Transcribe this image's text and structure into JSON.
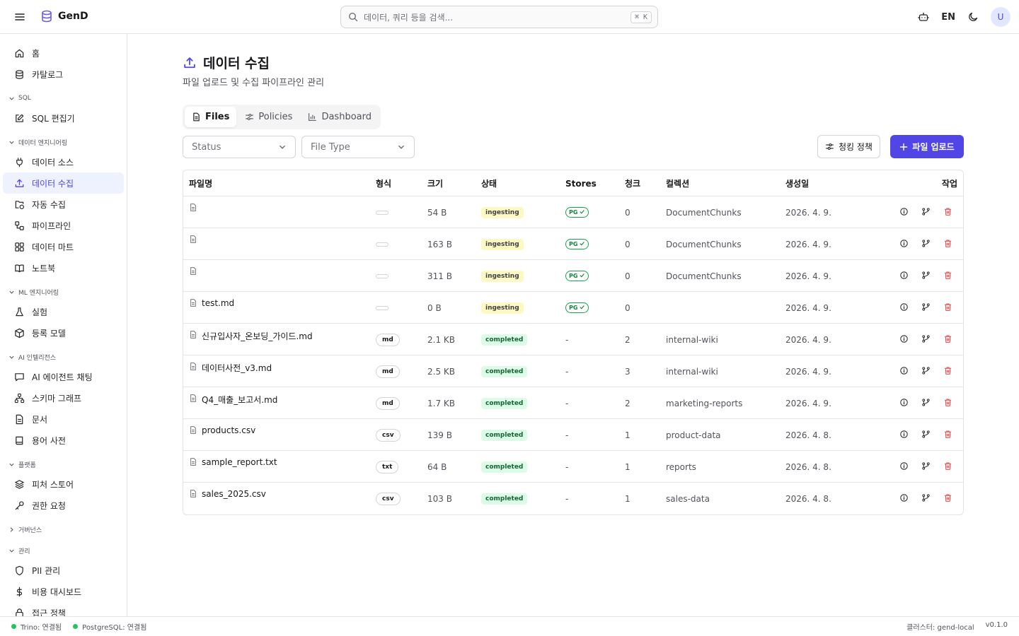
{
  "app": {
    "name": "GenD"
  },
  "header": {
    "search_placeholder": "데이터, 쿼리 등을 검색...",
    "shortcut": "⌘ K",
    "lang": "EN",
    "avatar_initial": "U"
  },
  "sidebar": {
    "top": [
      {
        "label": "홈",
        "icon": "home-icon"
      },
      {
        "label": "카탈로그",
        "icon": "database-icon"
      }
    ],
    "groups": [
      {
        "title": "SQL",
        "expanded": true,
        "items": [
          {
            "label": "SQL 편집기",
            "icon": "edit-icon"
          }
        ]
      },
      {
        "title": "데이터 엔지니어링",
        "expanded": true,
        "items": [
          {
            "label": "데이터 소스",
            "icon": "plug-icon"
          },
          {
            "label": "데이터 수집",
            "icon": "upload-icon",
            "active": true
          },
          {
            "label": "자동 수집",
            "icon": "folder-sync-icon"
          },
          {
            "label": "파이프라인",
            "icon": "workflow-icon"
          },
          {
            "label": "데이터 마트",
            "icon": "grid-icon"
          },
          {
            "label": "노트북",
            "icon": "book-icon"
          }
        ]
      },
      {
        "title": "ML 엔지니어링",
        "expanded": true,
        "items": [
          {
            "label": "실험",
            "icon": "flask-icon"
          },
          {
            "label": "등록 모델",
            "icon": "box-icon"
          }
        ]
      },
      {
        "title": "AI 인텔리전스",
        "expanded": true,
        "items": [
          {
            "label": "AI 에이전트 채팅",
            "icon": "chat-icon"
          },
          {
            "label": "스키마 그래프",
            "icon": "network-icon"
          },
          {
            "label": "문서",
            "icon": "document-icon"
          },
          {
            "label": "용어 사전",
            "icon": "book-open-icon"
          }
        ]
      },
      {
        "title": "플랫폼",
        "expanded": true,
        "items": [
          {
            "label": "피처 스토어",
            "icon": "layers-icon"
          },
          {
            "label": "권한 요청",
            "icon": "key-icon"
          }
        ]
      },
      {
        "title": "거버넌스",
        "expanded": false,
        "items": []
      },
      {
        "title": "관리",
        "expanded": true,
        "items": [
          {
            "label": "PII 관리",
            "icon": "shield-icon"
          },
          {
            "label": "비용 대시보드",
            "icon": "dollar-icon"
          },
          {
            "label": "접근 정책",
            "icon": "lock-icon"
          }
        ]
      }
    ]
  },
  "page": {
    "title": "데이터 수집",
    "subtitle": "파일 업로드 및 수집 파이프라인 관리",
    "tabs": [
      {
        "label": "Files",
        "icon": "file-icon",
        "active": true
      },
      {
        "label": "Policies",
        "icon": "sliders-icon"
      },
      {
        "label": "Dashboard",
        "icon": "bar-chart-icon"
      }
    ],
    "filters": {
      "status": "Status",
      "file_type": "File Type"
    },
    "chunk_policy_label": "청킹 정책",
    "upload_label": "파일 업로드"
  },
  "table": {
    "columns": [
      "파일명",
      "형식",
      "크기",
      "상태",
      "Stores",
      "청크",
      "컬렉션",
      "생성일",
      "작업"
    ],
    "rows": [
      {
        "name": "",
        "format": "",
        "size": "54 B",
        "status": "ingesting",
        "stores": "PG",
        "chunks": "0",
        "collection": "DocumentChunks",
        "created": "2026. 4. 9."
      },
      {
        "name": "",
        "format": "",
        "size": "163 B",
        "status": "ingesting",
        "stores": "PG",
        "chunks": "0",
        "collection": "DocumentChunks",
        "created": "2026. 4. 9."
      },
      {
        "name": "",
        "format": "",
        "size": "311 B",
        "status": "ingesting",
        "stores": "PG",
        "chunks": "0",
        "collection": "DocumentChunks",
        "created": "2026. 4. 9."
      },
      {
        "name": "test.md",
        "format": "",
        "size": "0 B",
        "status": "ingesting",
        "stores": "PG",
        "chunks": "0",
        "collection": "",
        "created": "2026. 4. 9."
      },
      {
        "name": "신규입사자_온보딩_가이드.md",
        "format": "md",
        "size": "2.1 KB",
        "status": "completed",
        "stores": "-",
        "chunks": "2",
        "collection": "internal-wiki",
        "created": "2026. 4. 9."
      },
      {
        "name": "데이터사전_v3.md",
        "format": "md",
        "size": "2.5 KB",
        "status": "completed",
        "stores": "-",
        "chunks": "3",
        "collection": "internal-wiki",
        "created": "2026. 4. 9."
      },
      {
        "name": "Q4_매출_보고서.md",
        "format": "md",
        "size": "1.7 KB",
        "status": "completed",
        "stores": "-",
        "chunks": "2",
        "collection": "marketing-reports",
        "created": "2026. 4. 9."
      },
      {
        "name": "products.csv",
        "format": "csv",
        "size": "139 B",
        "status": "completed",
        "stores": "-",
        "chunks": "1",
        "collection": "product-data",
        "created": "2026. 4. 8."
      },
      {
        "name": "sample_report.txt",
        "format": "txt",
        "size": "64 B",
        "status": "completed",
        "stores": "-",
        "chunks": "1",
        "collection": "reports",
        "created": "2026. 4. 8."
      },
      {
        "name": "sales_2025.csv",
        "format": "csv",
        "size": "103 B",
        "status": "completed",
        "stores": "-",
        "chunks": "1",
        "collection": "sales-data",
        "created": "2026. 4. 8."
      }
    ]
  },
  "statusbar": {
    "trino": "Trino: 연결됨",
    "postgres": "PostgreSQL: 연결됨",
    "cluster": "클러스터: gend-local",
    "version": "v0.1.0"
  },
  "colors": {
    "accent": "#5145e6",
    "active_bg": "#eef2ff",
    "ok": "#22c55e",
    "danger": "#ef4444"
  }
}
